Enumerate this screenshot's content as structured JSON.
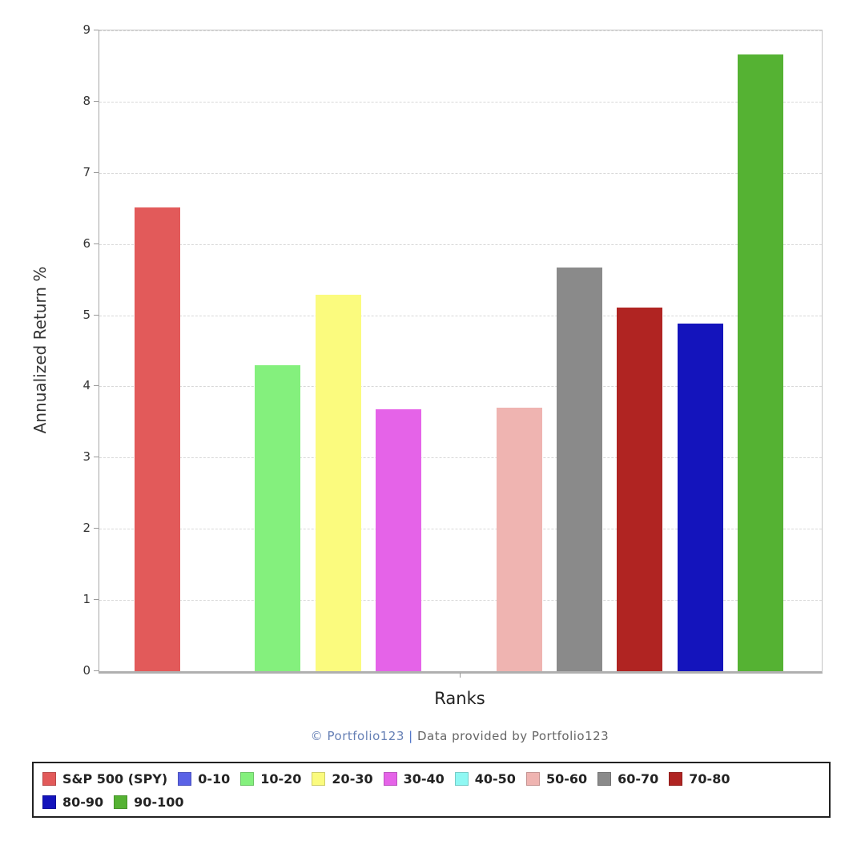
{
  "chart_data": {
    "type": "bar",
    "title": "",
    "xlabel": "Ranks",
    "ylabel": "Annualized Return %",
    "ylim": [
      0,
      9
    ],
    "y_ticks": [
      0,
      1,
      2,
      3,
      4,
      5,
      6,
      7,
      8,
      9
    ],
    "grid": "horizontal-dashed",
    "legend_position": "bottom",
    "categories": [
      "S&P 500 (SPY)",
      "0-10",
      "10-20",
      "20-30",
      "30-40",
      "40-50",
      "50-60",
      "60-70",
      "70-80",
      "80-90",
      "90-100"
    ],
    "values": [
      6.51,
      0,
      4.3,
      5.29,
      3.68,
      0,
      3.7,
      5.67,
      5.11,
      4.88,
      8.66
    ],
    "colors": [
      "#e25a5a",
      "#5a62e6",
      "#84f07d",
      "#fbfb7e",
      "#e563e8",
      "#8ff8f3",
      "#efb4b1",
      "#8a8a8a",
      "#b02422",
      "#1414bc",
      "#55b233"
    ]
  },
  "caption": {
    "copyright": "© Portfolio123",
    "separator": "|",
    "provider": "Data provided by Portfolio123"
  }
}
